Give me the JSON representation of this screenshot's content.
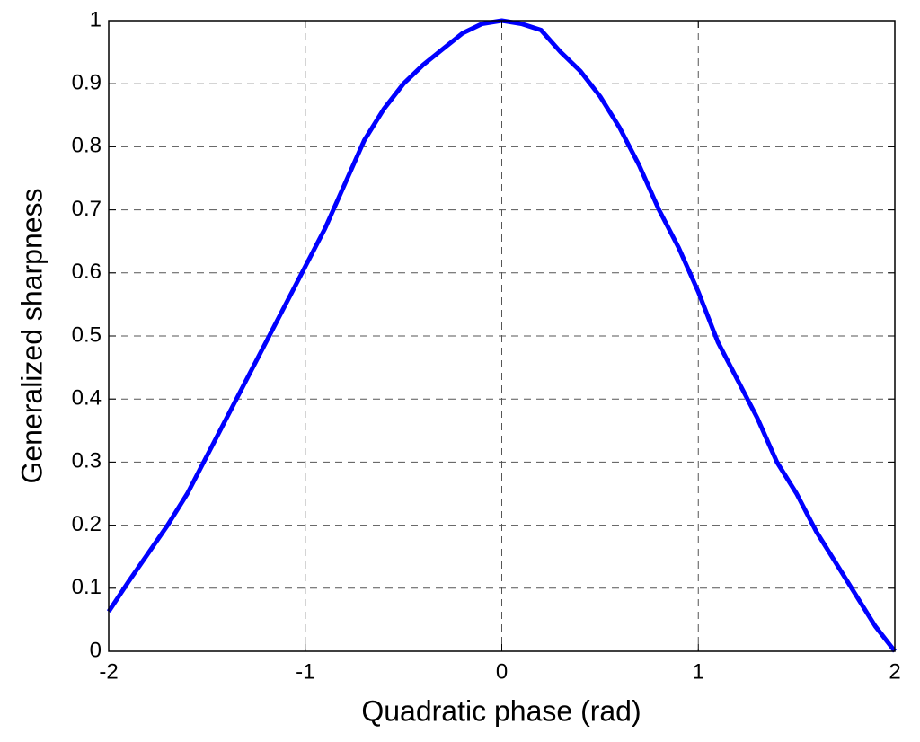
{
  "chart_data": {
    "type": "line",
    "xlabel": "Quadratic phase  (rad)",
    "ylabel": "Generalized sharpness",
    "x": [
      -2,
      -1.9,
      -1.8,
      -1.7,
      -1.6,
      -1.5,
      -1.4,
      -1.3,
      -1.2,
      -1.1,
      -1,
      -0.9,
      -0.8,
      -0.7,
      -0.6,
      -0.5,
      -0.4,
      -0.3,
      -0.2,
      -0.1,
      0,
      0.1,
      0.2,
      0.3,
      0.4,
      0.5,
      0.6,
      0.7,
      0.8,
      0.9,
      1,
      1.1,
      1.2,
      1.3,
      1.4,
      1.5,
      1.6,
      1.7,
      1.8,
      1.9,
      2
    ],
    "series": [
      {
        "color": "#0000ff",
        "values": [
          0.063,
          0.11,
          0.155,
          0.2,
          0.25,
          0.31,
          0.37,
          0.43,
          0.49,
          0.55,
          0.61,
          0.67,
          0.74,
          0.81,
          0.86,
          0.9,
          0.93,
          0.955,
          0.98,
          0.995,
          1.0,
          0.995,
          0.985,
          0.95,
          0.92,
          0.88,
          0.83,
          0.77,
          0.7,
          0.64,
          0.57,
          0.49,
          0.43,
          0.37,
          0.3,
          0.25,
          0.19,
          0.14,
          0.09,
          0.04,
          0.0
        ]
      }
    ],
    "xlim": [
      -2,
      2
    ],
    "xticks": [
      -2,
      -1,
      0,
      1,
      2
    ],
    "ylim": [
      0,
      1
    ],
    "yticks": [
      0,
      0.1,
      0.2,
      0.3,
      0.4,
      0.5,
      0.6,
      0.7,
      0.8,
      0.9,
      1
    ],
    "grid": true
  }
}
